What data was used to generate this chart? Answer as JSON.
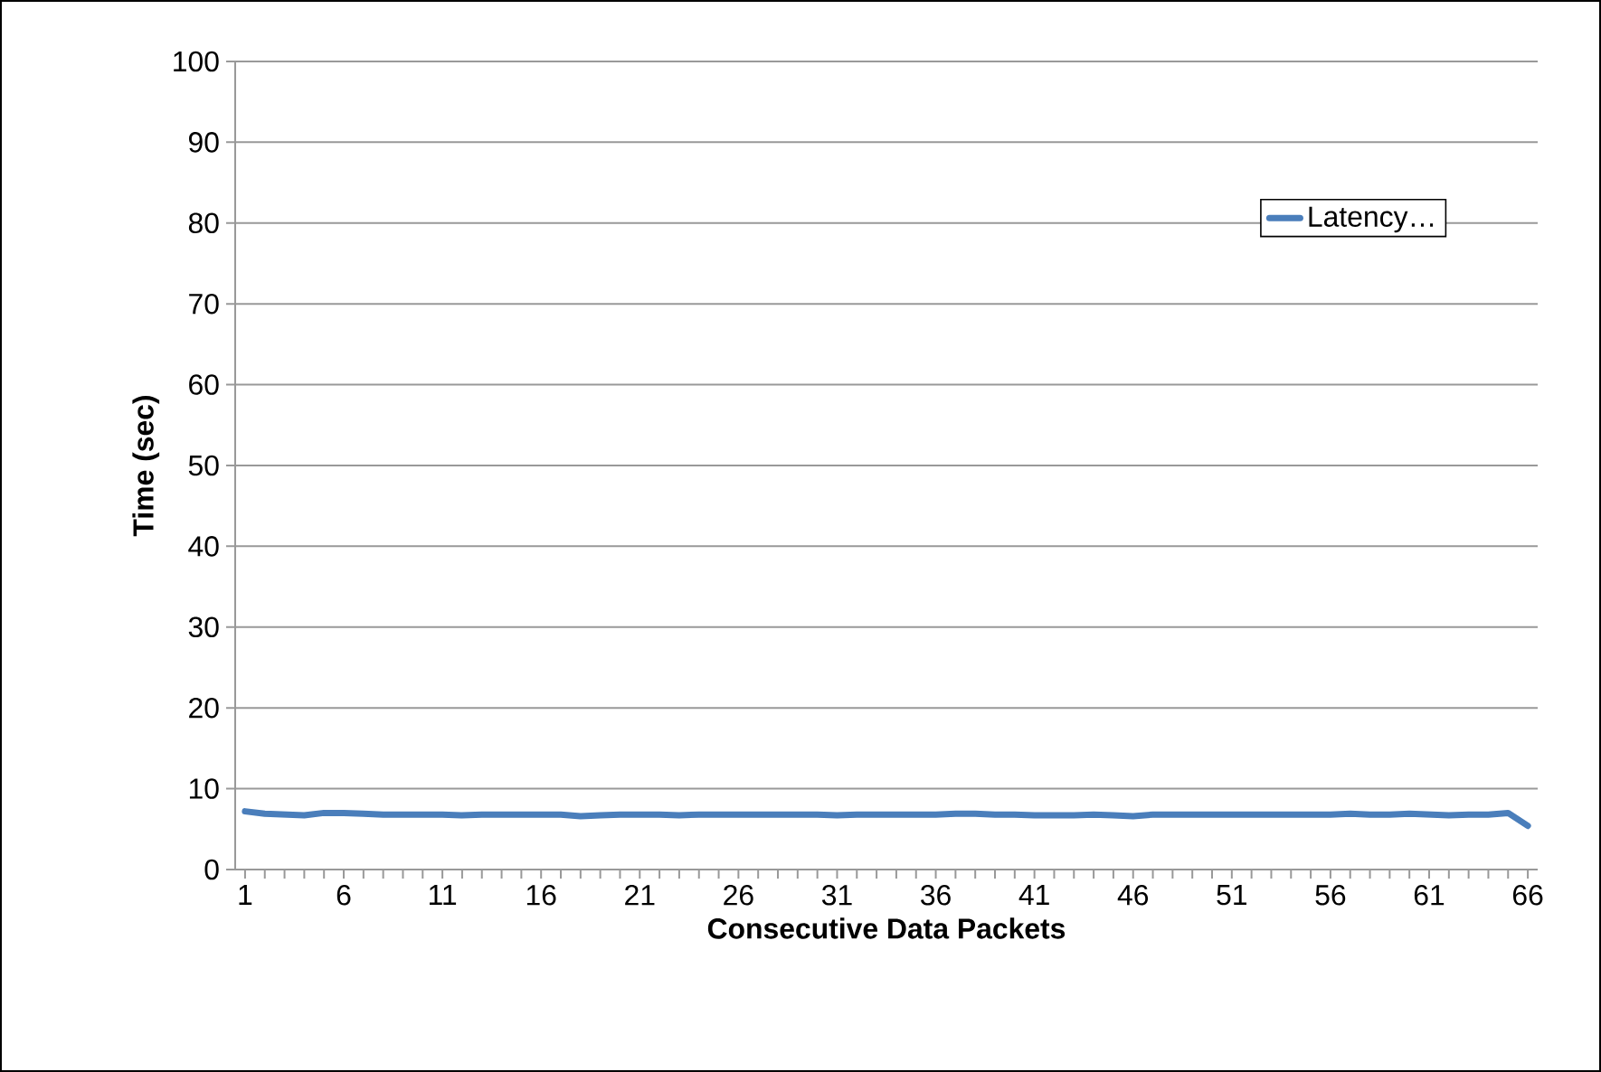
{
  "chart_data": {
    "type": "line",
    "xlabel": "Consecutive Data Packets",
    "ylabel": "Time (sec)",
    "categories": [
      "1",
      null,
      null,
      null,
      null,
      "6",
      null,
      null,
      null,
      null,
      "11",
      null,
      null,
      null,
      null,
      "16",
      null,
      null,
      null,
      null,
      "21",
      null,
      null,
      null,
      null,
      "26",
      null,
      null,
      null,
      null,
      "31",
      null,
      null,
      null,
      null,
      "36",
      null,
      null,
      null,
      null,
      "41",
      null,
      null,
      null,
      null,
      "46",
      null,
      null,
      null,
      null,
      "51",
      null,
      null,
      null,
      null,
      "56",
      null,
      null,
      null,
      null,
      "61",
      null,
      null,
      null,
      null,
      "66"
    ],
    "series": [
      {
        "name": "Latency…",
        "color": "#4a7ebb",
        "values": [
          7.2,
          6.9,
          6.8,
          6.7,
          7.0,
          7.0,
          6.9,
          6.8,
          6.8,
          6.8,
          6.8,
          6.7,
          6.8,
          6.8,
          6.8,
          6.8,
          6.8,
          6.6,
          6.7,
          6.8,
          6.8,
          6.8,
          6.7,
          6.8,
          6.8,
          6.8,
          6.8,
          6.8,
          6.8,
          6.8,
          6.7,
          6.8,
          6.8,
          6.8,
          6.8,
          6.8,
          6.9,
          6.9,
          6.8,
          6.8,
          6.7,
          6.7,
          6.7,
          6.8,
          6.7,
          6.6,
          6.8,
          6.8,
          6.8,
          6.8,
          6.8,
          6.8,
          6.8,
          6.8,
          6.8,
          6.8,
          6.9,
          6.8,
          6.8,
          6.9,
          6.8,
          6.7,
          6.8,
          6.8,
          7.0,
          5.4
        ]
      }
    ],
    "ylim": [
      0,
      100
    ],
    "yticks": [
      0,
      10,
      20,
      30,
      40,
      50,
      60,
      70,
      80,
      90,
      100
    ],
    "grid": "y",
    "legend": "top right",
    "marker": "none",
    "line_style": "solid"
  }
}
